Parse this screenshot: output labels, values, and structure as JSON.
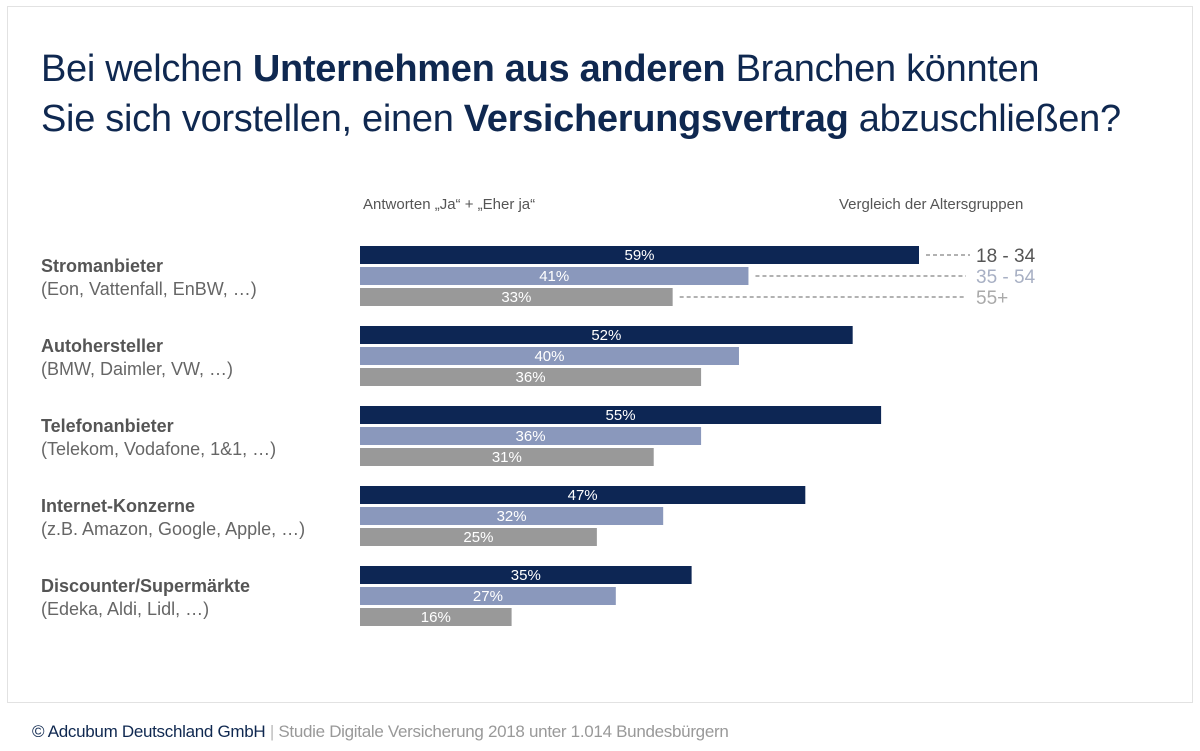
{
  "title": {
    "line1": [
      {
        "text": "Bei welchen ",
        "bold": false
      },
      {
        "text": "Unternehmen aus anderen",
        "bold": true
      },
      {
        "text": " Branchen könnten",
        "bold": false
      }
    ],
    "line2": [
      {
        "text": "Sie sich vorstellen, einen ",
        "bold": false
      },
      {
        "text": "Versicherungsvertrag",
        "bold": true
      },
      {
        "text": " abzuschließen?",
        "bold": false
      }
    ]
  },
  "subtitle_left": "Antworten „Ja“ + „Eher ja“",
  "subtitle_right": "Vergleich der Altersgruppen",
  "colors": {
    "18-34": "#0d2654",
    "35-54": "#8a98bc",
    "55+": "#999999",
    "legend_18": "#555555",
    "legend_35": "#a8b0c4",
    "legend_55": "#aaaaaa"
  },
  "chart_data": {
    "type": "bar",
    "orientation": "horizontal",
    "title": "Bei welchen Unternehmen aus anderen Branchen könnten Sie sich vorstellen, einen Versicherungsvertrag abzuschließen?",
    "xlabel": "Antworten „Ja“ + „Eher ja“",
    "ylabel": "",
    "unit": "%",
    "xlim": [
      0,
      100
    ],
    "grid": false,
    "legend_title": "Vergleich der Altersgruppen",
    "legend_position": "right of first group",
    "categories": [
      {
        "name": "Stromanbieter",
        "examples": "(Eon, Vattenfall, EnBW, …)"
      },
      {
        "name": "Autohersteller",
        "examples": "(BMW, Daimler, VW, …)"
      },
      {
        "name": "Telefonanbieter",
        "examples": "(Telekom, Vodafone, 1&1, …)"
      },
      {
        "name": "Internet-Konzerne",
        "examples": "(z.B. Amazon, Google, Apple, …)"
      },
      {
        "name": "Discounter/Supermärkte",
        "examples": "(Edeka, Aldi, Lidl, …)"
      }
    ],
    "series": [
      {
        "name": "18 - 34",
        "key": "18-34",
        "values": [
          59,
          52,
          55,
          47,
          35
        ]
      },
      {
        "name": "35 - 54",
        "key": "35-54",
        "values": [
          41,
          40,
          36,
          32,
          27
        ]
      },
      {
        "name": "55+",
        "key": "55+",
        "values": [
          33,
          36,
          31,
          25,
          16
        ]
      }
    ]
  },
  "footer": {
    "copyright": "© Adcubum Deutschland GmbH",
    "separator": " | ",
    "study": "Studie Digitale Versicherung 2018 unter 1.014 Bundesbürgern"
  }
}
